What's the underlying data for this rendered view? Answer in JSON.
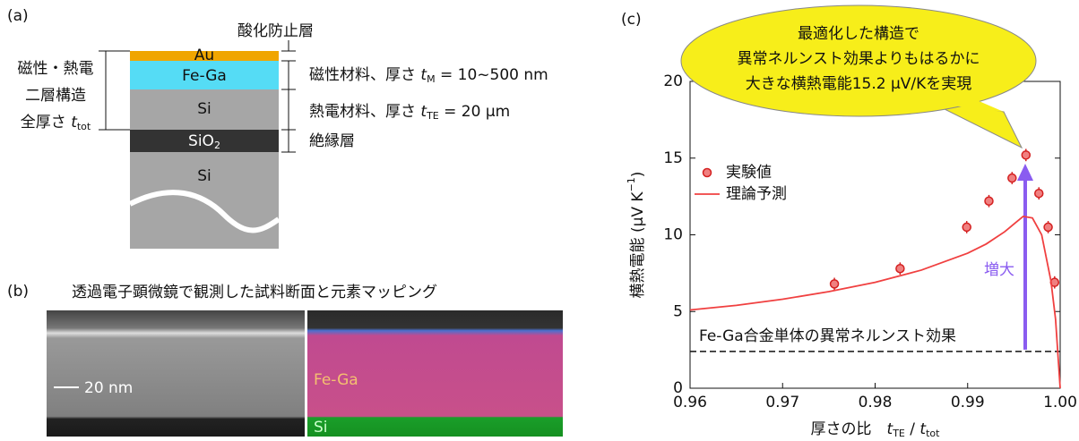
{
  "panel_a": {
    "label": "(a)",
    "layers": [
      [
        "Au"
      ],
      [
        "Fe-Ga"
      ],
      [
        "Si"
      ],
      [
        "SiO",
        "2"
      ],
      [
        "Si"
      ]
    ],
    "left_lines": [
      [
        "磁性・熱電"
      ],
      [
        "二層構造"
      ],
      [
        "全厚さ ",
        "t",
        "tot"
      ]
    ],
    "right_lines": [
      [
        "酸化防止層"
      ],
      [
        "磁性材料、厚さ ",
        "t",
        "M",
        " = 10~500 nm"
      ],
      [
        "熱電材料、厚さ ",
        "t",
        "TE",
        " = 20 μm"
      ],
      [
        "絶縁層"
      ]
    ]
  },
  "panel_b": {
    "label": "(b)",
    "title": "透過電子顕微鏡で観測した試料断面と元素マッピング",
    "scale_bar": "20 nm",
    "element_labels": [
      "Fe-Ga",
      "Si"
    ]
  },
  "chart_data": {
    "type": "scatter",
    "panel_label": "(c)",
    "xlabel": [
      "厚さの比　",
      "t",
      "TE",
      " / ",
      "t",
      "tot"
    ],
    "ylabel": [
      "横熱電能 (μV K",
      "−1",
      ")"
    ],
    "xlim": [
      0.96,
      1.0
    ],
    "ylim": [
      0,
      20
    ],
    "xticks": [
      0.96,
      0.97,
      0.98,
      0.99,
      {
        "value": 1.0,
        "label": "1.00"
      }
    ],
    "yticks": [
      0,
      5,
      10,
      15,
      20
    ],
    "series": [
      {
        "name": "実験値",
        "type": "scatter",
        "color": "#f08080",
        "edge_color": "#d42020",
        "x": [
          0.9756,
          0.9827,
          0.9899,
          0.9923,
          0.9948,
          0.9963,
          0.9977,
          0.9987,
          0.9994
        ],
        "values": [
          6.8,
          7.8,
          10.5,
          12.2,
          13.7,
          15.2,
          12.7,
          10.5,
          6.9
        ],
        "errors": [
          0.4,
          0.4,
          0.4,
          0.4,
          0.4,
          0.4,
          0.4,
          0.4,
          0.4
        ]
      },
      {
        "name": "理論予測",
        "type": "line",
        "color": "#f04040",
        "x": [
          0.96,
          0.965,
          0.97,
          0.975,
          0.98,
          0.985,
          0.99,
          0.992,
          0.994,
          0.995,
          0.996,
          0.997,
          0.998,
          0.999,
          0.9995,
          1.0
        ],
        "values": [
          5.1,
          5.4,
          5.8,
          6.3,
          6.9,
          7.7,
          8.8,
          9.4,
          10.2,
          10.7,
          11.2,
          11.1,
          10.0,
          7.0,
          4.5,
          0
        ]
      }
    ],
    "reference_line": {
      "value": 2.4,
      "label": "Fe-Ga合金単体の異常ネルンスト効果"
    },
    "arrow_label": "増大",
    "callout": [
      "最適化した構造で",
      "異常ネルンスト効果よりもはるかに",
      "大きな横熱電能15.2 μV/Kを実現"
    ]
  }
}
